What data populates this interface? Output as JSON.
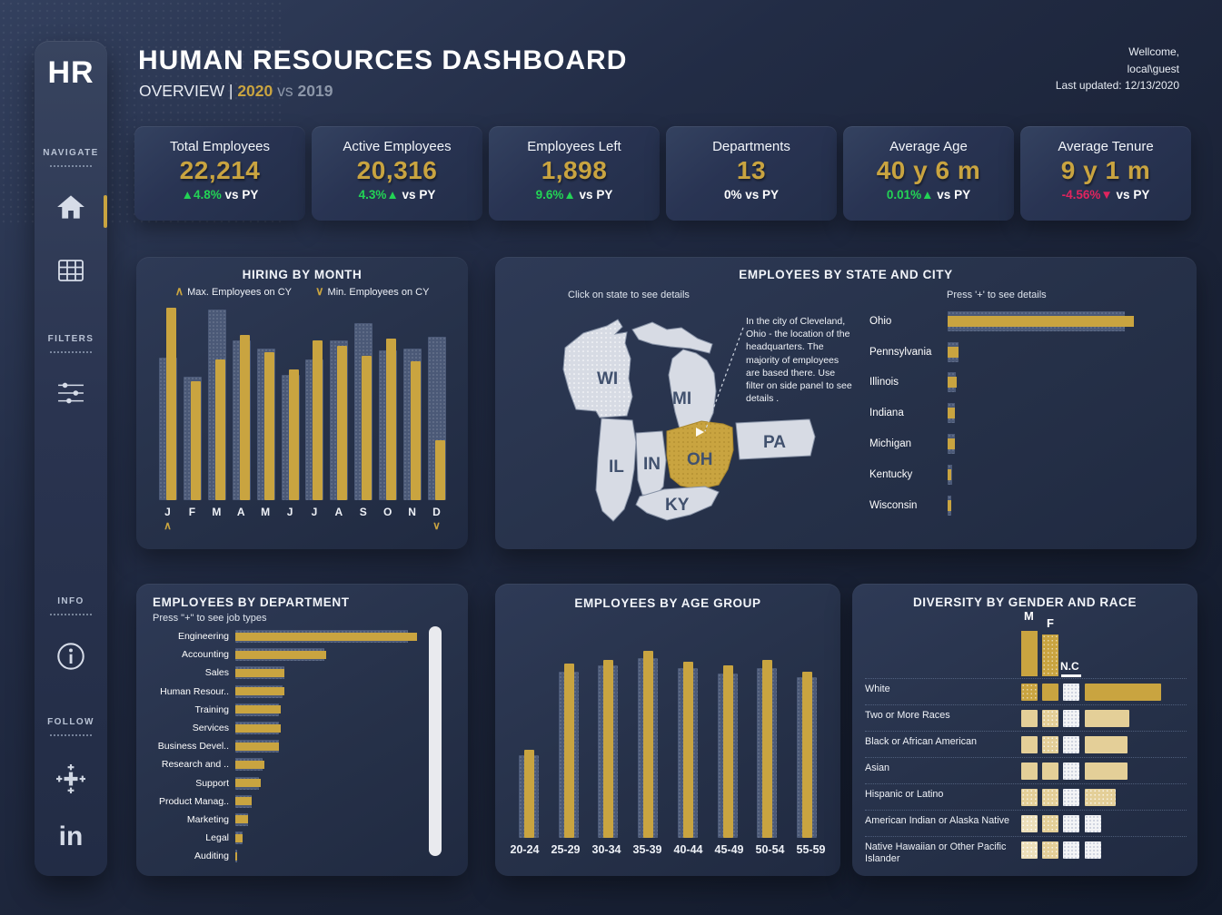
{
  "colors": {
    "accent_gold": "#c9a440",
    "positive_green": "#23d355",
    "negative_red": "#e0245e",
    "comparison_gray": "#4b5977",
    "tan": "#e4cf98"
  },
  "header": {
    "title": "HUMAN RESOURCES DASHBOARD",
    "subtitle_prefix": "OVERVIEW",
    "subtitle_divider": "|",
    "year_current": "2020",
    "subtitle_vs": "vs",
    "year_previous": "2019",
    "welcome_line1": "Wellcome,",
    "welcome_line2": "local\\guest",
    "last_updated": "Last updated: 12/13/2020"
  },
  "sidebar": {
    "logo": "HR",
    "sections": {
      "navigate": "NAVIGATE",
      "filters": "FILTERS",
      "info": "INFO",
      "follow": "FOLLOW"
    },
    "linkedin_text": "in"
  },
  "kpis": [
    {
      "title": "Total Employees",
      "value": "22,214",
      "delta": "▲4.8%",
      "delta_color": "green",
      "suffix": " vs PY"
    },
    {
      "title": "Active Employees",
      "value": "20,316",
      "delta": "4.3%▲",
      "delta_color": "green",
      "suffix": " vs PY"
    },
    {
      "title": "Employees Left",
      "value": "1,898",
      "delta": "9.6%▲",
      "delta_color": "green",
      "suffix": " vs PY"
    },
    {
      "title": "Departments",
      "value": "13",
      "delta": "0%",
      "delta_color": "white",
      "suffix": " vs PY"
    },
    {
      "title": "Average Age",
      "value": "40 y 6 m",
      "delta": "0.01%▲",
      "delta_color": "green",
      "suffix": " vs PY"
    },
    {
      "title": "Average  Tenure",
      "value": "9 y 1 m",
      "delta": "-4.56%▼",
      "delta_color": "red",
      "suffix": " vs PY"
    }
  ],
  "chart_data": [
    {
      "id": "hiring_by_month",
      "type": "bar",
      "title": "HIRING BY MONTH",
      "legend": [
        {
          "icon": "chevron-up",
          "label": "Max. Employees on CY"
        },
        {
          "icon": "chevron-down",
          "label": "Min. Employees on CY"
        }
      ],
      "categories": [
        "J",
        "F",
        "M",
        "A",
        "M",
        "J",
        "J",
        "A",
        "S",
        "O",
        "N",
        "D"
      ],
      "series": [
        {
          "name": "CY 2020",
          "color": "#c9a440",
          "values": [
            100,
            62,
            73,
            86,
            77,
            68,
            83,
            80,
            75,
            84,
            72,
            31
          ]
        },
        {
          "name": "PY 2019",
          "color": "#4b5977",
          "values": [
            74,
            64,
            99,
            83,
            79,
            65,
            73,
            83,
            92,
            78,
            79,
            85
          ]
        }
      ],
      "max_month_index": 0,
      "min_month_index": 11,
      "ylim": [
        0,
        100
      ],
      "unit": "relative % of tallest bar"
    },
    {
      "id": "employees_by_state_and_city",
      "type": "bar-horizontal",
      "title": "EMPLOYEES BY STATE AND CITY",
      "hint_map": "Click on state to see details",
      "hint_bars": "Press '+' to see details",
      "annotation": "In the city of Cleveland, Ohio - the location of the headquarters. The majority of employees are based there. Use filter on side panel to see details .",
      "map_states": [
        "WI",
        "MI",
        "IL",
        "IN",
        "OH",
        "PA",
        "KY"
      ],
      "highlighted_state": "OH",
      "categories": [
        "Ohio",
        "Pennsylvania",
        "Illinois",
        "Indiana",
        "Michigan",
        "Kentucky",
        "Wisconsin"
      ],
      "series": [
        {
          "name": "CY 2020",
          "values": [
            100,
            6,
            5,
            4,
            4,
            2,
            2
          ]
        },
        {
          "name": "PY 2019",
          "values": [
            95,
            6,
            4.5,
            3.8,
            3.8,
            2.2,
            2
          ]
        }
      ],
      "unit": "relative % of longest bar"
    },
    {
      "id": "employees_by_department",
      "type": "bar-horizontal",
      "title": "EMPLOYEES BY DEPARTMENT",
      "subtitle": "Press \"+\" to see job types",
      "categories": [
        "Engineering",
        "Accounting",
        "Sales",
        "Human Resour..",
        "Training",
        "Services",
        "Business Devel..",
        "Research and ..",
        "Support",
        "Product Manag..",
        "Marketing",
        "Legal",
        "Auditing"
      ],
      "series": [
        {
          "name": "CY 2020",
          "values": [
            100,
            50,
            27,
            27,
            25,
            25,
            24,
            16,
            14,
            9,
            7,
            4,
            1
          ]
        },
        {
          "name": "PY 2019",
          "values": [
            95,
            49,
            27,
            26,
            24,
            24,
            24,
            15,
            13,
            9,
            7,
            4,
            1
          ]
        }
      ],
      "unit": "relative % of longest bar"
    },
    {
      "id": "employees_by_age_group",
      "type": "bar",
      "title": "EMPLOYEES BY AGE GROUP",
      "categories": [
        "20-24",
        "25-29",
        "30-34",
        "35-39",
        "40-44",
        "45-49",
        "50-54",
        "55-59"
      ],
      "series": [
        {
          "name": "CY 2020",
          "values": [
            47,
            93,
            95,
            100,
            94,
            92,
            95,
            89
          ]
        },
        {
          "name": "PY 2019",
          "values": [
            44,
            89,
            92,
            96,
            91,
            88,
            91,
            86
          ]
        }
      ],
      "unit": "relative % of tallest bar"
    },
    {
      "id": "diversity_by_gender_and_race",
      "type": "matrix",
      "title": "DIVERSITY BY GENDER AND RACE",
      "columns": [
        "M",
        "F",
        "N.C"
      ],
      "column_bars": [
        100,
        92,
        0
      ],
      "rows": [
        {
          "label": "White",
          "cells": [
            "gold-dot",
            "gold",
            "white-dot"
          ],
          "total": 100,
          "total_style": "gold"
        },
        {
          "label": "Two or More Races",
          "cells": [
            "tan",
            "tan-dot",
            "white-dot"
          ],
          "total": 58,
          "total_style": "tan"
        },
        {
          "label": "Black or African American",
          "cells": [
            "tan",
            "tan-dot",
            "white-dot"
          ],
          "total": 56,
          "total_style": "tan"
        },
        {
          "label": "Asian",
          "cells": [
            "tan",
            "tan",
            "white-dot"
          ],
          "total": 56,
          "total_style": "tan"
        },
        {
          "label": "Hispanic or Latino",
          "cells": [
            "tan-dot",
            "tan-dot",
            "white-dot"
          ],
          "total": 41,
          "total_style": "tan-dot"
        },
        {
          "label": "American Indian or Alaska Native",
          "cells": [
            "light-dot",
            "tan-dot",
            "white-dot"
          ],
          "total": 21,
          "total_style": "white-dot"
        },
        {
          "label": "Native Hawaiian or Other Pacific Islander",
          "cells": [
            "light-dot",
            "tan-dot",
            "white-dot"
          ],
          "total": 21,
          "total_style": "white-dot"
        }
      ]
    }
  ]
}
